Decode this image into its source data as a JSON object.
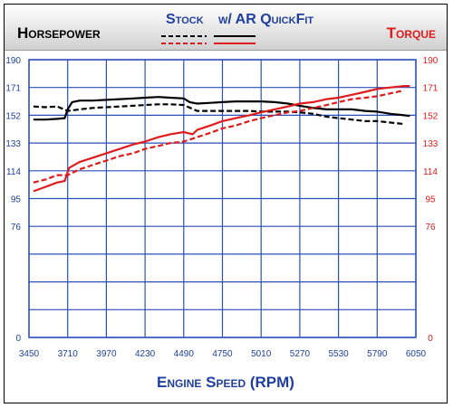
{
  "header": {
    "left_title": "Horsepower",
    "right_title": "Torque",
    "legend_stock": "Stock",
    "legend_ar": "w/ AR QuickFit"
  },
  "colors": {
    "horsepower": "#000000",
    "torque": "#e01b1b",
    "grid": "#2b4fb8",
    "axis_text": "#1f3f9e"
  },
  "chart_data": {
    "type": "line",
    "title": "",
    "xlabel": "Engine Speed (RPM)",
    "ylabel_left": "Horsepower",
    "ylabel_right": "Torque",
    "xlim": [
      3450,
      6050
    ],
    "ylim": [
      0,
      190
    ],
    "x_ticks": [
      3450,
      3710,
      3970,
      4230,
      4490,
      4750,
      5010,
      5270,
      5530,
      5790,
      6050
    ],
    "y_ticks": [
      0,
      19,
      38,
      57,
      76,
      95,
      114,
      133,
      152,
      171,
      190
    ],
    "y_tick_labels": [
      "0",
      "",
      "",
      "",
      "76",
      "95",
      "114",
      "133",
      "152",
      "171",
      "190"
    ],
    "grid": true,
    "series": [
      {
        "name": "Horsepower - Stock",
        "style": "dashed",
        "color": "#000000",
        "x": [
          3480,
          3560,
          3640,
          3710,
          3790,
          3880,
          3970,
          4060,
          4150,
          4230,
          4320,
          4400,
          4490,
          4580,
          4670,
          4750,
          4840,
          4930,
          5010,
          5100,
          5190,
          5270,
          5360,
          5450,
          5530,
          5620,
          5710,
          5790,
          5880,
          5970
        ],
        "y": [
          158,
          157.5,
          158,
          155,
          156,
          157,
          157.5,
          158,
          158.5,
          159,
          159.5,
          159.5,
          159,
          155,
          155,
          155,
          155,
          155,
          154.5,
          154.5,
          154.5,
          154,
          153,
          151,
          150,
          149,
          148,
          148,
          147,
          146
        ]
      },
      {
        "name": "Horsepower - w/ AR QuickFit",
        "style": "solid",
        "color": "#000000",
        "x": [
          3480,
          3560,
          3640,
          3690,
          3710,
          3740,
          3790,
          3880,
          3970,
          4060,
          4150,
          4230,
          4320,
          4400,
          4490,
          4530,
          4580,
          4670,
          4750,
          4840,
          4930,
          5010,
          5100,
          5190,
          5270,
          5360,
          5450,
          5530,
          5620,
          5710,
          5790,
          5880,
          5970,
          6010
        ],
        "y": [
          149,
          149,
          149.5,
          150,
          156,
          161,
          162,
          162,
          162.5,
          163,
          163.5,
          164,
          164.5,
          164,
          163.5,
          161,
          160,
          160.5,
          161,
          161.5,
          161.5,
          161.5,
          161,
          160,
          158.5,
          157,
          156,
          156,
          156,
          155,
          154.5,
          153,
          152,
          151.5
        ]
      },
      {
        "name": "Torque - Stock",
        "style": "dashed",
        "color": "#e01b1b",
        "x": [
          3480,
          3560,
          3640,
          3710,
          3790,
          3880,
          3970,
          4060,
          4150,
          4230,
          4320,
          4400,
          4490,
          4580,
          4670,
          4750,
          4840,
          4930,
          5010,
          5100,
          5190,
          5270,
          5360,
          5450,
          5530,
          5620,
          5710,
          5790,
          5880,
          5970
        ],
        "y": [
          106,
          108,
          111,
          111,
          115,
          118,
          121,
          124,
          126,
          129,
          131,
          133,
          134,
          137,
          140,
          143,
          145,
          148,
          150,
          152,
          154,
          155,
          157,
          159,
          161,
          163,
          164,
          165,
          167,
          169
        ]
      },
      {
        "name": "Torque - w/ AR QuickFit",
        "style": "solid",
        "color": "#e01b1b",
        "x": [
          3480,
          3560,
          3640,
          3690,
          3720,
          3790,
          3880,
          3970,
          4060,
          4150,
          4230,
          4320,
          4400,
          4490,
          4550,
          4580,
          4670,
          4750,
          4840,
          4930,
          5010,
          5100,
          5190,
          5270,
          5360,
          5450,
          5530,
          5620,
          5710,
          5790,
          5880,
          5970,
          6010
        ],
        "y": [
          100,
          103,
          106,
          107,
          116,
          120,
          123,
          126,
          129,
          132,
          134,
          137,
          139,
          140.5,
          139,
          142,
          145,
          148,
          150,
          152,
          154,
          156,
          158,
          160,
          161,
          163,
          164,
          166,
          168,
          170,
          171,
          172,
          172
        ]
      }
    ]
  }
}
